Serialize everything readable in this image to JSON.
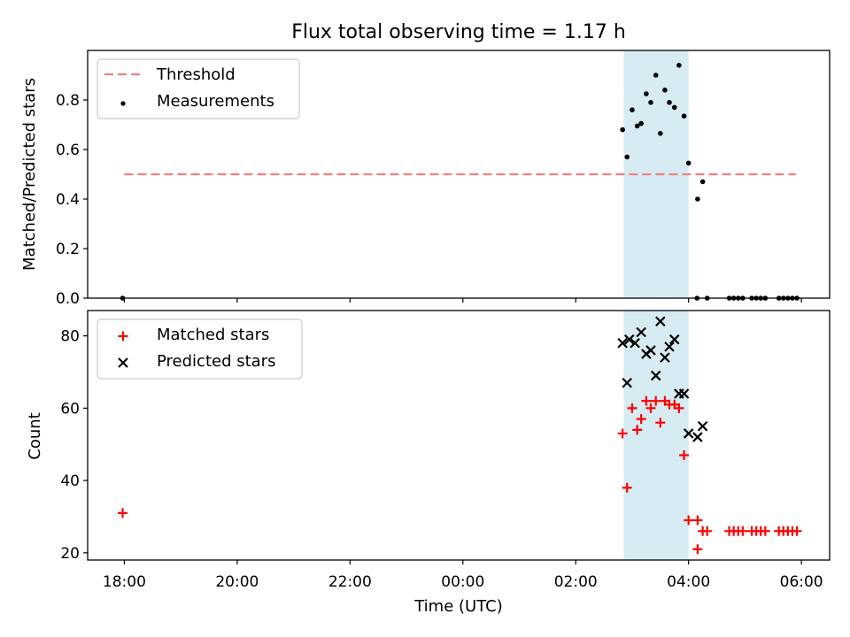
{
  "chart_data": {
    "title": "Flux total observing time = 1.17 h",
    "xlabel": "Time (UTC)",
    "x_unit": "hours since 18:00 UTC",
    "xlim": [
      -0.65,
      12.5
    ],
    "x_ticks": [
      0,
      2,
      4,
      6,
      8,
      10,
      12
    ],
    "x_tick_labels": [
      "18:00",
      "20:00",
      "22:00",
      "00:00",
      "02:00",
      "04:00",
      "06:00"
    ],
    "shaded_span": {
      "x0": 8.85,
      "x1": 10.0,
      "color": "#add8e6",
      "opacity": 0.5
    },
    "panels": [
      {
        "type": "scatter",
        "ylabel": "Matched/Predicted stars",
        "ylim": [
          0,
          1.0
        ],
        "y_ticks": [
          0.0,
          0.2,
          0.4,
          0.6,
          0.8
        ],
        "y_tick_labels": [
          "0.0",
          "0.2",
          "0.4",
          "0.6",
          "0.8"
        ],
        "legend_position": "upper-left",
        "threshold": {
          "name": "Threshold",
          "value": 0.5,
          "x0": 0.0,
          "x1": 11.9,
          "color": "#f08080",
          "style": "dashed"
        },
        "series": [
          {
            "name": "Measurements",
            "marker": "dot",
            "color": "#000000",
            "points": [
              [
                -0.03,
                0.0
              ],
              [
                8.83,
                0.68
              ],
              [
                8.91,
                0.57
              ],
              [
                9.0,
                0.76
              ],
              [
                9.09,
                0.695
              ],
              [
                9.16,
                0.705
              ],
              [
                9.25,
                0.825
              ],
              [
                9.33,
                0.79
              ],
              [
                9.42,
                0.9
              ],
              [
                9.5,
                0.665
              ],
              [
                9.58,
                0.84
              ],
              [
                9.66,
                0.79
              ],
              [
                9.75,
                0.77
              ],
              [
                9.83,
                0.94
              ],
              [
                9.92,
                0.735
              ],
              [
                10.0,
                0.545
              ],
              [
                10.16,
                0.4
              ],
              [
                10.25,
                0.47
              ],
              [
                10.15,
                0.0
              ],
              [
                10.33,
                0.0
              ],
              [
                10.72,
                0.0
              ],
              [
                10.8,
                0.0
              ],
              [
                10.88,
                0.0
              ],
              [
                10.96,
                0.0
              ],
              [
                11.12,
                0.0
              ],
              [
                11.2,
                0.0
              ],
              [
                11.28,
                0.0
              ],
              [
                11.36,
                0.0
              ],
              [
                11.6,
                0.0
              ],
              [
                11.68,
                0.0
              ],
              [
                11.76,
                0.0
              ],
              [
                11.84,
                0.0
              ],
              [
                11.92,
                0.0
              ]
            ]
          }
        ]
      },
      {
        "type": "scatter",
        "ylabel": "Count",
        "ylim": [
          18,
          87
        ],
        "y_ticks": [
          20,
          40,
          60,
          80
        ],
        "y_tick_labels": [
          "20",
          "40",
          "60",
          "80"
        ],
        "legend_position": "upper-left",
        "series": [
          {
            "name": "Matched stars",
            "marker": "plus",
            "color": "#ff0000",
            "points": [
              [
                -0.03,
                31
              ],
              [
                8.83,
                53
              ],
              [
                8.91,
                38
              ],
              [
                9.0,
                60
              ],
              [
                9.09,
                54
              ],
              [
                9.16,
                57
              ],
              [
                9.25,
                62
              ],
              [
                9.33,
                60
              ],
              [
                9.42,
                62
              ],
              [
                9.5,
                56
              ],
              [
                9.58,
                62
              ],
              [
                9.66,
                61
              ],
              [
                9.75,
                61
              ],
              [
                9.83,
                60
              ],
              [
                9.92,
                47
              ],
              [
                10.0,
                29
              ],
              [
                10.16,
                29
              ],
              [
                10.16,
                21
              ],
              [
                10.25,
                26
              ],
              [
                10.33,
                26
              ],
              [
                10.72,
                26
              ],
              [
                10.8,
                26
              ],
              [
                10.88,
                26
              ],
              [
                10.96,
                26
              ],
              [
                11.12,
                26
              ],
              [
                11.2,
                26
              ],
              [
                11.28,
                26
              ],
              [
                11.36,
                26
              ],
              [
                11.6,
                26
              ],
              [
                11.68,
                26
              ],
              [
                11.76,
                26
              ],
              [
                11.84,
                26
              ],
              [
                11.92,
                26
              ]
            ]
          },
          {
            "name": "Predicted stars",
            "marker": "x",
            "color": "#000000",
            "points": [
              [
                8.83,
                78
              ],
              [
                8.91,
                67
              ],
              [
                8.95,
                79
              ],
              [
                9.05,
                78
              ],
              [
                9.16,
                81
              ],
              [
                9.25,
                75
              ],
              [
                9.33,
                76
              ],
              [
                9.42,
                69
              ],
              [
                9.5,
                84
              ],
              [
                9.58,
                74
              ],
              [
                9.66,
                77
              ],
              [
                9.75,
                79
              ],
              [
                9.83,
                64
              ],
              [
                9.92,
                64
              ],
              [
                10.0,
                53
              ],
              [
                10.16,
                52
              ],
              [
                10.25,
                55
              ]
            ]
          }
        ]
      }
    ]
  }
}
